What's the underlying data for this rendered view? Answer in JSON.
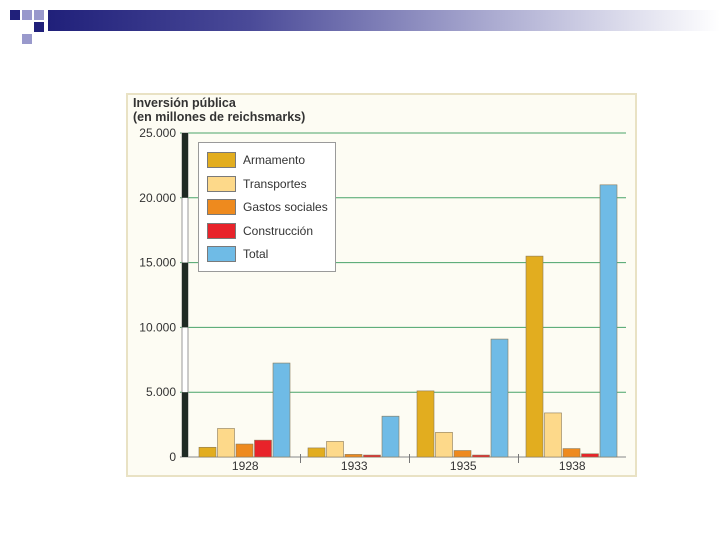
{
  "slide": {
    "accent_colors": [
      "#20207a",
      "#9999cc"
    ]
  },
  "chart_data": {
    "type": "bar",
    "title": "Inversión pública",
    "subtitle": "(en millones de reichsmarks)",
    "xlabel": "",
    "ylabel": "Inversión pública (en millones de reichsmarks)",
    "ylim": [
      0,
      25000
    ],
    "yticks": [
      0,
      5000,
      10000,
      15000,
      20000,
      25000
    ],
    "ytick_labels": [
      "0",
      "5.000",
      "10.000",
      "15.000",
      "20.000",
      "25.000"
    ],
    "categories": [
      "1928",
      "1933",
      "1935",
      "1938"
    ],
    "legend_position": "top-left",
    "grid": true,
    "series": [
      {
        "name": "Armamento",
        "color": "#e2ad1f",
        "values": [
          750,
          700,
          5100,
          15500
        ]
      },
      {
        "name": "Transportes",
        "color": "#fdd98a",
        "values": [
          2200,
          1200,
          1900,
          3400
        ]
      },
      {
        "name": "Gastos sociales",
        "color": "#ee8a1e",
        "values": [
          1000,
          200,
          500,
          650
        ]
      },
      {
        "name": "Construcción",
        "color": "#e8232a",
        "values": [
          1300,
          150,
          150,
          250
        ]
      },
      {
        "name": "Total",
        "color": "#6fbbe6",
        "values": [
          7250,
          3150,
          9100,
          21000
        ]
      }
    ]
  }
}
